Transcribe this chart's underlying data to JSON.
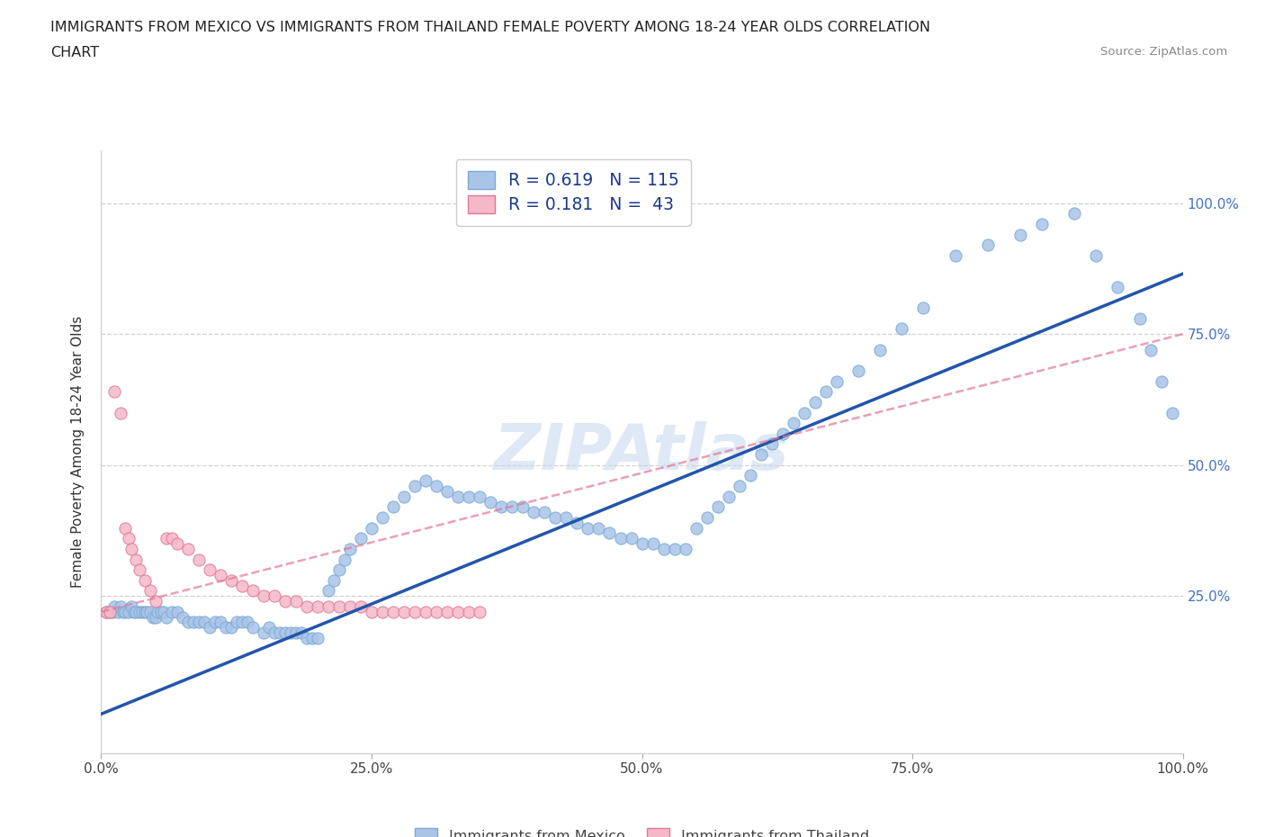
{
  "title_line1": "IMMIGRANTS FROM MEXICO VS IMMIGRANTS FROM THAILAND FEMALE POVERTY AMONG 18-24 YEAR OLDS CORRELATION",
  "title_line2": "CHART",
  "source_text": "Source: ZipAtlas.com",
  "ylabel": "Female Poverty Among 18-24 Year Olds",
  "xlim": [
    0.0,
    1.0
  ],
  "ylim": [
    -0.05,
    1.1
  ],
  "xtick_labels": [
    "0.0%",
    "25.0%",
    "50.0%",
    "75.0%",
    "100.0%"
  ],
  "xtick_vals": [
    0.0,
    0.25,
    0.5,
    0.75,
    1.0
  ],
  "ytick_labels": [
    "25.0%",
    "50.0%",
    "75.0%",
    "100.0%"
  ],
  "ytick_vals": [
    0.25,
    0.5,
    0.75,
    1.0
  ],
  "ytick_color": "#4472c4",
  "watermark": "ZIPAtlas",
  "mexico_color": "#aac4e8",
  "mexico_edge": "#7aaad4",
  "thailand_color": "#f5b8c8",
  "thailand_edge": "#e07898",
  "trendline_mexico_color": "#2255aa",
  "trendline_thailand_color": "#e07898",
  "R_mexico": 0.619,
  "N_mexico": 115,
  "R_thailand": 0.181,
  "N_thailand": 43,
  "legend_label_mexico": "Immigrants from Mexico",
  "legend_label_thailand": "Immigrants from Thailand",
  "title_fontsize": 11.5,
  "axis_label_fontsize": 11,
  "tick_fontsize": 11,
  "background_color": "#ffffff",
  "mexico_x": [
    0.005,
    0.008,
    0.01,
    0.012,
    0.015,
    0.018,
    0.02,
    0.022,
    0.025,
    0.028,
    0.03,
    0.032,
    0.035,
    0.038,
    0.04,
    0.042,
    0.045,
    0.048,
    0.05,
    0.052,
    0.055,
    0.058,
    0.06,
    0.065,
    0.07,
    0.075,
    0.08,
    0.085,
    0.09,
    0.095,
    0.1,
    0.105,
    0.11,
    0.115,
    0.12,
    0.125,
    0.13,
    0.135,
    0.14,
    0.15,
    0.155,
    0.16,
    0.165,
    0.17,
    0.175,
    0.18,
    0.185,
    0.19,
    0.195,
    0.2,
    0.21,
    0.215,
    0.22,
    0.225,
    0.23,
    0.24,
    0.25,
    0.26,
    0.27,
    0.28,
    0.29,
    0.3,
    0.31,
    0.32,
    0.33,
    0.34,
    0.35,
    0.36,
    0.37,
    0.38,
    0.39,
    0.4,
    0.41,
    0.42,
    0.43,
    0.44,
    0.45,
    0.46,
    0.47,
    0.48,
    0.49,
    0.5,
    0.51,
    0.52,
    0.53,
    0.54,
    0.55,
    0.56,
    0.57,
    0.58,
    0.59,
    0.6,
    0.61,
    0.62,
    0.63,
    0.64,
    0.65,
    0.66,
    0.67,
    0.68,
    0.7,
    0.72,
    0.74,
    0.76,
    0.79,
    0.82,
    0.85,
    0.87,
    0.9,
    0.92,
    0.94,
    0.96,
    0.97,
    0.98,
    0.99
  ],
  "mexico_y": [
    0.22,
    0.22,
    0.22,
    0.23,
    0.22,
    0.23,
    0.22,
    0.22,
    0.22,
    0.23,
    0.22,
    0.22,
    0.22,
    0.22,
    0.22,
    0.22,
    0.22,
    0.21,
    0.21,
    0.22,
    0.22,
    0.22,
    0.21,
    0.22,
    0.22,
    0.21,
    0.2,
    0.2,
    0.2,
    0.2,
    0.19,
    0.2,
    0.2,
    0.19,
    0.19,
    0.2,
    0.2,
    0.2,
    0.19,
    0.18,
    0.19,
    0.18,
    0.18,
    0.18,
    0.18,
    0.18,
    0.18,
    0.17,
    0.17,
    0.17,
    0.26,
    0.28,
    0.3,
    0.32,
    0.34,
    0.36,
    0.38,
    0.4,
    0.42,
    0.44,
    0.46,
    0.47,
    0.46,
    0.45,
    0.44,
    0.44,
    0.44,
    0.43,
    0.42,
    0.42,
    0.42,
    0.41,
    0.41,
    0.4,
    0.4,
    0.39,
    0.38,
    0.38,
    0.37,
    0.36,
    0.36,
    0.35,
    0.35,
    0.34,
    0.34,
    0.34,
    0.38,
    0.4,
    0.42,
    0.44,
    0.46,
    0.48,
    0.52,
    0.54,
    0.56,
    0.58,
    0.6,
    0.62,
    0.64,
    0.66,
    0.68,
    0.72,
    0.76,
    0.8,
    0.9,
    0.92,
    0.94,
    0.96,
    0.98,
    0.9,
    0.84,
    0.78,
    0.72,
    0.66,
    0.6
  ],
  "thailand_x": [
    0.005,
    0.008,
    0.012,
    0.018,
    0.022,
    0.025,
    0.028,
    0.032,
    0.035,
    0.04,
    0.045,
    0.05,
    0.06,
    0.065,
    0.07,
    0.08,
    0.09,
    0.1,
    0.11,
    0.12,
    0.13,
    0.14,
    0.15,
    0.16,
    0.17,
    0.18,
    0.19,
    0.2,
    0.21,
    0.22,
    0.23,
    0.24,
    0.25,
    0.26,
    0.27,
    0.28,
    0.29,
    0.3,
    0.31,
    0.32,
    0.33,
    0.34,
    0.35
  ],
  "thailand_y": [
    0.22,
    0.22,
    0.64,
    0.6,
    0.38,
    0.36,
    0.34,
    0.32,
    0.3,
    0.28,
    0.26,
    0.24,
    0.36,
    0.36,
    0.35,
    0.34,
    0.32,
    0.3,
    0.29,
    0.28,
    0.27,
    0.26,
    0.25,
    0.25,
    0.24,
    0.24,
    0.23,
    0.23,
    0.23,
    0.23,
    0.23,
    0.23,
    0.22,
    0.22,
    0.22,
    0.22,
    0.22,
    0.22,
    0.22,
    0.22,
    0.22,
    0.22,
    0.22
  ],
  "mexico_trendline_x": [
    0.0,
    1.0
  ],
  "mexico_trendline_y": [
    0.025,
    0.865
  ],
  "thailand_trendline_x": [
    0.0,
    1.0
  ],
  "thailand_trendline_y": [
    0.22,
    0.75
  ]
}
